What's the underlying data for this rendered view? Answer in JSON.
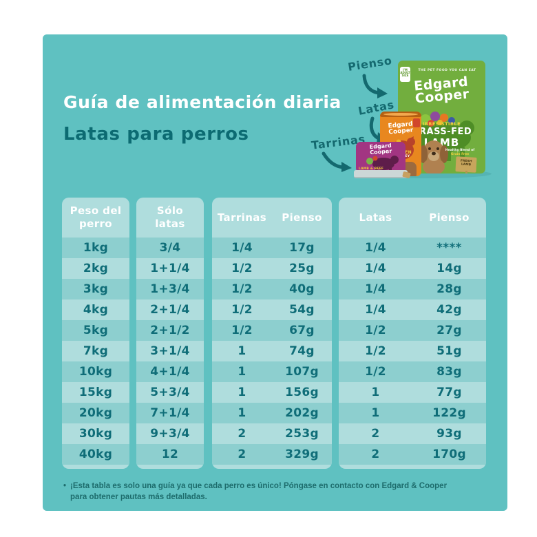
{
  "page": {
    "title": "Guía de alimentación diaria",
    "subtitle": "Latas para perros",
    "footnote_bullet": "•",
    "footnote_line1": "¡Esta tabla es solo una guía ya que cada perro es único! Póngase en contacto con Edgard & Cooper",
    "footnote_line2": "para obtener pautas más detalladas."
  },
  "callouts": [
    {
      "text": "Pienso"
    },
    {
      "text": "Latas"
    },
    {
      "text": "Tarrinas"
    }
  ],
  "products": {
    "bag": {
      "badge": "I'M ADULT SIZE",
      "top_text": "THE PET FOOD YOU CAN EAT",
      "brand_line1": "Edgard",
      "brand_line2": "Cooper",
      "claim": "IRRESISTIBLE",
      "flavor_line1": "GRASS-FED",
      "flavor_line2": "LAMB",
      "side_line1": "Healthy Blend of",
      "side_line2": "Grain Free",
      "sign_line1": "FRESH",
      "sign_line2": "LAMB"
    },
    "can": {
      "brand_line1": "Edgard",
      "brand_line2": "Cooper",
      "flavor_line1": "CHICKEN",
      "flavor_line2": "& KIDNEY"
    },
    "tray": {
      "brand_line1": "Edgard",
      "brand_line2": "Cooper",
      "flavor": "LAMB & BEEF"
    }
  },
  "tables": [
    {
      "name": "peso-del-perro",
      "columns": 1,
      "header_lines": [
        "Peso del",
        "perro"
      ],
      "rows": [
        "1kg",
        "2kg",
        "3kg",
        "4kg",
        "5kg",
        "7kg",
        "10kg",
        "15kg",
        "20kg",
        "30kg",
        "40kg"
      ]
    },
    {
      "name": "solo-latas",
      "columns": 1,
      "header_lines": [
        "Sólo",
        "latas"
      ],
      "rows": [
        "3/4",
        "1+1/4",
        "1+3/4",
        "2+1/4",
        "2+1/2",
        "3+1/4",
        "4+1/4",
        "5+3/4",
        "7+1/4",
        "9+3/4",
        "12"
      ]
    },
    {
      "name": "tarrinas-pienso",
      "columns": 2,
      "headers": [
        "Tarrinas",
        "Pienso"
      ],
      "rows": [
        [
          "1/4",
          "17g"
        ],
        [
          "1/2",
          "25g"
        ],
        [
          "1/2",
          "40g"
        ],
        [
          "1/2",
          "54g"
        ],
        [
          "1/2",
          "67g"
        ],
        [
          "1",
          "74g"
        ],
        [
          "1",
          "107g"
        ],
        [
          "1",
          "156g"
        ],
        [
          "1",
          "202g"
        ],
        [
          "2",
          "253g"
        ],
        [
          "2",
          "329g"
        ]
      ]
    },
    {
      "name": "latas-pienso",
      "columns": 2,
      "headers": [
        "Latas",
        "Pienso"
      ],
      "rows": [
        [
          "1/4",
          "****"
        ],
        [
          "1/4",
          "14g"
        ],
        [
          "1/4",
          "28g"
        ],
        [
          "1/4",
          "42g"
        ],
        [
          "1/2",
          "27g"
        ],
        [
          "1/2",
          "51g"
        ],
        [
          "1/2",
          "83g"
        ],
        [
          "1",
          "77g"
        ],
        [
          "1",
          "122g"
        ],
        [
          "2",
          "93g"
        ],
        [
          "2",
          "170g"
        ]
      ]
    }
  ],
  "chart_data": {
    "type": "table",
    "title": "Guía de alimentación diaria — Latas para perros",
    "columns": [
      "Peso del perro",
      "Sólo latas",
      "Tarrinas",
      "Pienso",
      "Latas",
      "Pienso"
    ],
    "rows": [
      [
        "1kg",
        "3/4",
        "1/4",
        "17g",
        "1/4",
        "****"
      ],
      [
        "2kg",
        "1+1/4",
        "1/2",
        "25g",
        "1/4",
        "14g"
      ],
      [
        "3kg",
        "1+3/4",
        "1/2",
        "40g",
        "1/4",
        "28g"
      ],
      [
        "4kg",
        "2+1/4",
        "1/2",
        "54g",
        "1/4",
        "42g"
      ],
      [
        "5kg",
        "2+1/2",
        "1/2",
        "67g",
        "1/2",
        "27g"
      ],
      [
        "7kg",
        "3+1/4",
        "1",
        "74g",
        "1/2",
        "51g"
      ],
      [
        "10kg",
        "4+1/4",
        "1",
        "107g",
        "1/2",
        "83g"
      ],
      [
        "15kg",
        "5+3/4",
        "1",
        "156g",
        "1",
        "77g"
      ],
      [
        "20kg",
        "7+1/4",
        "1",
        "202g",
        "1",
        "122g"
      ],
      [
        "30kg",
        "9+3/4",
        "2",
        "253g",
        "2",
        "93g"
      ],
      [
        "40kg",
        "12",
        "2",
        "329g",
        "2",
        "170g"
      ]
    ]
  },
  "colors": {
    "panel_teal": "#5fc1c1",
    "table_light": "#afdddd",
    "table_dark": "#8dcfcf",
    "cell_text": "#0f6d78",
    "subtitle_text": "#0c6b72",
    "bag_green": "#72ae3e",
    "can_orange": "#e8871f",
    "tray_magenta": "#a23582"
  }
}
